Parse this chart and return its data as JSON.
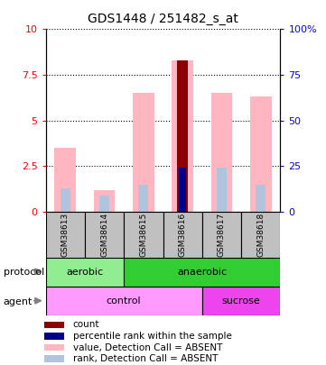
{
  "title": "GDS1448 / 251482_s_at",
  "samples": [
    "GSM38613",
    "GSM38614",
    "GSM38615",
    "GSM38616",
    "GSM38617",
    "GSM38618"
  ],
  "value_absent": [
    3.5,
    1.2,
    6.5,
    8.3,
    6.5,
    6.3
  ],
  "rank_absent": [
    1.3,
    0.9,
    1.5,
    2.4,
    2.4,
    1.5
  ],
  "count_value": [
    null,
    null,
    null,
    8.3,
    null,
    null
  ],
  "percentile_rank": [
    null,
    null,
    null,
    2.4,
    null,
    null
  ],
  "ylim_left": [
    0,
    10
  ],
  "ylim_right": [
    0,
    100
  ],
  "yticks_left": [
    0,
    2.5,
    5,
    7.5,
    10
  ],
  "yticks_right": [
    0,
    25,
    50,
    75,
    100
  ],
  "ytick_labels_right": [
    "0",
    "25",
    "50",
    "75",
    "100%"
  ],
  "color_value_absent": "#FFB6C1",
  "color_rank_absent": "#B0C4DE",
  "color_count": "#8B0000",
  "color_percentile": "#00008B",
  "color_aerobic": "#90EE90",
  "color_anaerobic": "#32CD32",
  "color_control": "#FF99FF",
  "color_sucrose": "#EE44EE",
  "color_sample_bg": "#C0C0C0",
  "legend_items": [
    {
      "label": "count",
      "color": "#8B0000"
    },
    {
      "label": "percentile rank within the sample",
      "color": "#00008B"
    },
    {
      "label": "value, Detection Call = ABSENT",
      "color": "#FFB6C1"
    },
    {
      "label": "rank, Detection Call = ABSENT",
      "color": "#B0C4DE"
    }
  ]
}
